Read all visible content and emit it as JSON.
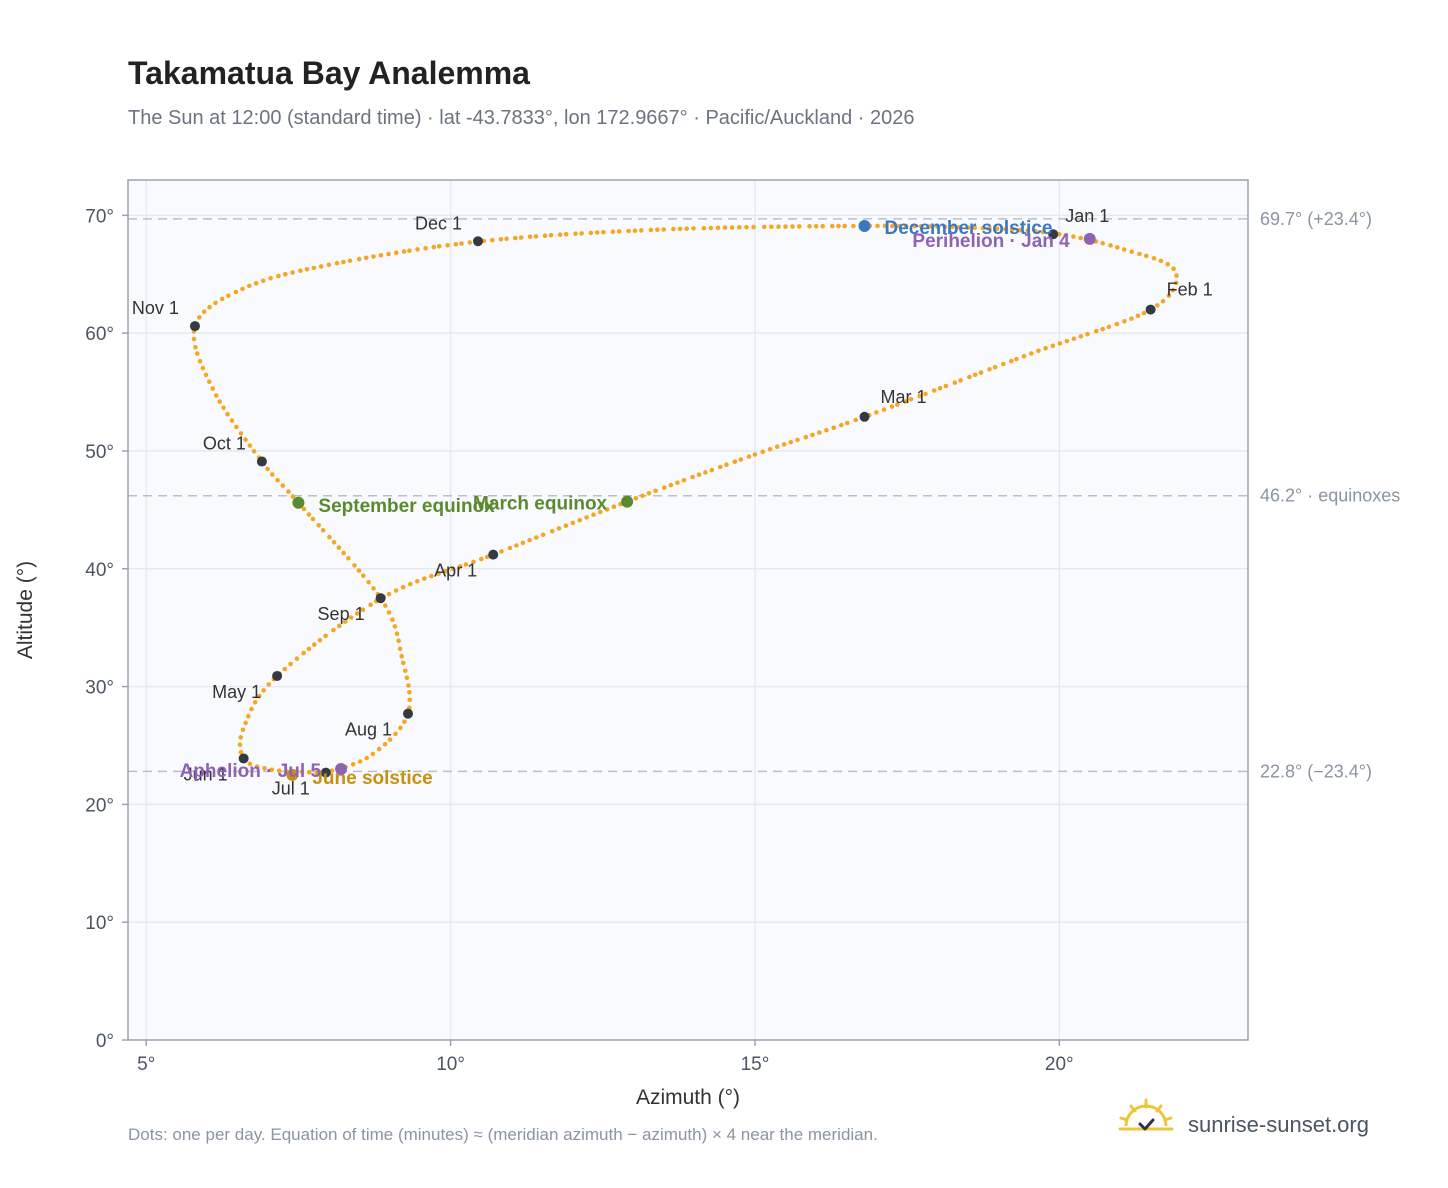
{
  "header": {
    "title": "Takamatua Bay Analemma",
    "subtitle": "The Sun at 12:00 (standard time) · lat -43.7833°, lon 172.9667° · Pacific/Auckland · 2026"
  },
  "footer": {
    "note": "Dots: one per day. Equation of time (minutes) ≈ (meridian azimuth − azimuth) × 4 near the meridian.",
    "brand": "sunrise-sunset.org",
    "brand_icon": "sun-logo-icon"
  },
  "colors": {
    "curve": "#f5a623",
    "month_dot": "#333a44",
    "equinox": "#5a8a2e",
    "december_solstice": "#3a78c2",
    "june_solstice": "#c8900e",
    "aphelion_perihelion": "#8e63b5",
    "grid": "#e6eaf0",
    "plot_bg": "#f8fafd",
    "frame": "#9aa3b2",
    "ref_line": "#b8c0cb"
  },
  "chart_data": {
    "type": "scatter",
    "xlabel": "Azimuth (°)",
    "ylabel": "Altitude (°)",
    "xlim": [
      4.7,
      23.1
    ],
    "ylim": [
      0,
      73
    ],
    "xticks": [
      5,
      10,
      15,
      20
    ],
    "xtick_labels": [
      "5°",
      "10°",
      "15°",
      "20°"
    ],
    "yticks": [
      0,
      10,
      20,
      30,
      40,
      50,
      60,
      70
    ],
    "ytick_labels": [
      "0°",
      "10°",
      "20°",
      "30°",
      "40°",
      "50°",
      "60°",
      "70°"
    ],
    "grid": true,
    "series": [
      {
        "key": "daily_path",
        "marker": "dot",
        "points": [
          [
            20.0,
            68.4
          ],
          [
            21.0,
            67.2
          ],
          [
            21.9,
            65.3
          ],
          [
            21.5,
            62.0
          ],
          [
            19.5,
            58.2
          ],
          [
            16.8,
            52.9
          ],
          [
            15.0,
            49.7
          ],
          [
            12.9,
            45.7
          ],
          [
            10.7,
            41.2
          ],
          [
            8.9,
            37.6
          ],
          [
            7.15,
            30.9
          ],
          [
            6.6,
            26.5
          ],
          [
            6.6,
            23.9
          ],
          [
            7.0,
            23.0
          ],
          [
            7.6,
            22.75
          ],
          [
            8.0,
            22.8
          ],
          [
            8.7,
            24.2
          ],
          [
            9.3,
            27.7
          ],
          [
            9.2,
            32.5
          ],
          [
            8.85,
            37.5
          ],
          [
            7.5,
            45.6
          ],
          [
            6.9,
            49.1
          ],
          [
            6.1,
            55.2
          ],
          [
            5.8,
            60.6
          ],
          [
            6.6,
            63.8
          ],
          [
            8.0,
            65.8
          ],
          [
            10.5,
            67.8
          ],
          [
            13.5,
            68.8
          ],
          [
            16.8,
            69.1
          ],
          [
            18.8,
            68.9
          ],
          [
            20.0,
            68.4
          ]
        ]
      }
    ],
    "month_markers": [
      {
        "label": "Jan 1",
        "x": 19.9,
        "y": 68.4,
        "anchor": "start",
        "dx": 12,
        "dy": -12
      },
      {
        "label": "Feb 1",
        "x": 21.5,
        "y": 62.0,
        "anchor": "start",
        "dx": 16,
        "dy": -14
      },
      {
        "label": "Mar 1",
        "x": 16.8,
        "y": 52.9,
        "anchor": "start",
        "dx": 16,
        "dy": -14
      },
      {
        "label": "Apr 1",
        "x": 10.7,
        "y": 41.2,
        "anchor": "end",
        "dx": -16,
        "dy": 22
      },
      {
        "label": "May 1",
        "x": 7.15,
        "y": 30.9,
        "anchor": "end",
        "dx": -16,
        "dy": 22
      },
      {
        "label": "Jun 1",
        "x": 6.6,
        "y": 23.9,
        "anchor": "end",
        "dx": -16,
        "dy": 22
      },
      {
        "label": "Jul 1",
        "x": 7.95,
        "y": 22.7,
        "anchor": "end",
        "dx": -16,
        "dy": 22
      },
      {
        "label": "Aug 1",
        "x": 9.3,
        "y": 27.7,
        "anchor": "end",
        "dx": -16,
        "dy": 22
      },
      {
        "label": "Sep 1",
        "x": 8.85,
        "y": 37.5,
        "anchor": "end",
        "dx": -16,
        "dy": 22
      },
      {
        "label": "Oct 1",
        "x": 6.9,
        "y": 49.1,
        "anchor": "end",
        "dx": -16,
        "dy": -12
      },
      {
        "label": "Nov 1",
        "x": 5.8,
        "y": 60.6,
        "anchor": "end",
        "dx": -16,
        "dy": -12
      },
      {
        "label": "Dec 1",
        "x": 10.45,
        "y": 67.8,
        "anchor": "end",
        "dx": -16,
        "dy": -12
      }
    ],
    "event_markers": [
      {
        "label": "March equinox",
        "x": 12.9,
        "y": 45.7,
        "color": "#5a8a2e",
        "anchor": "end",
        "dx": -20,
        "dy": 8
      },
      {
        "label": "September equinox",
        "x": 7.5,
        "y": 45.6,
        "color": "#5a8a2e",
        "anchor": "start",
        "dx": 20,
        "dy": 9
      },
      {
        "label": "December solstice",
        "x": 16.8,
        "y": 69.1,
        "color": "#3a78c2",
        "anchor": "start",
        "dx": 20,
        "dy": 8
      },
      {
        "label": "June solstice",
        "x": 7.4,
        "y": 22.5,
        "color": "#c8900e",
        "anchor": "start",
        "dx": 20,
        "dy": 9
      },
      {
        "label": "Perihelion · Jan 4",
        "x": 20.5,
        "y": 68.0,
        "color": "#8e63b5",
        "anchor": "end",
        "dx": -20,
        "dy": 8
      },
      {
        "label": "Aphelion · Jul 5",
        "x": 8.2,
        "y": 23.0,
        "color": "#8e63b5",
        "anchor": "end",
        "dx": -20,
        "dy": 8
      }
    ],
    "reference_lines": [
      {
        "y": 69.7,
        "label": "69.7° (+23.4°)"
      },
      {
        "y": 46.2,
        "label": "46.2° · equinoxes"
      },
      {
        "y": 22.8,
        "label": "22.8° (−23.4°)"
      }
    ]
  }
}
